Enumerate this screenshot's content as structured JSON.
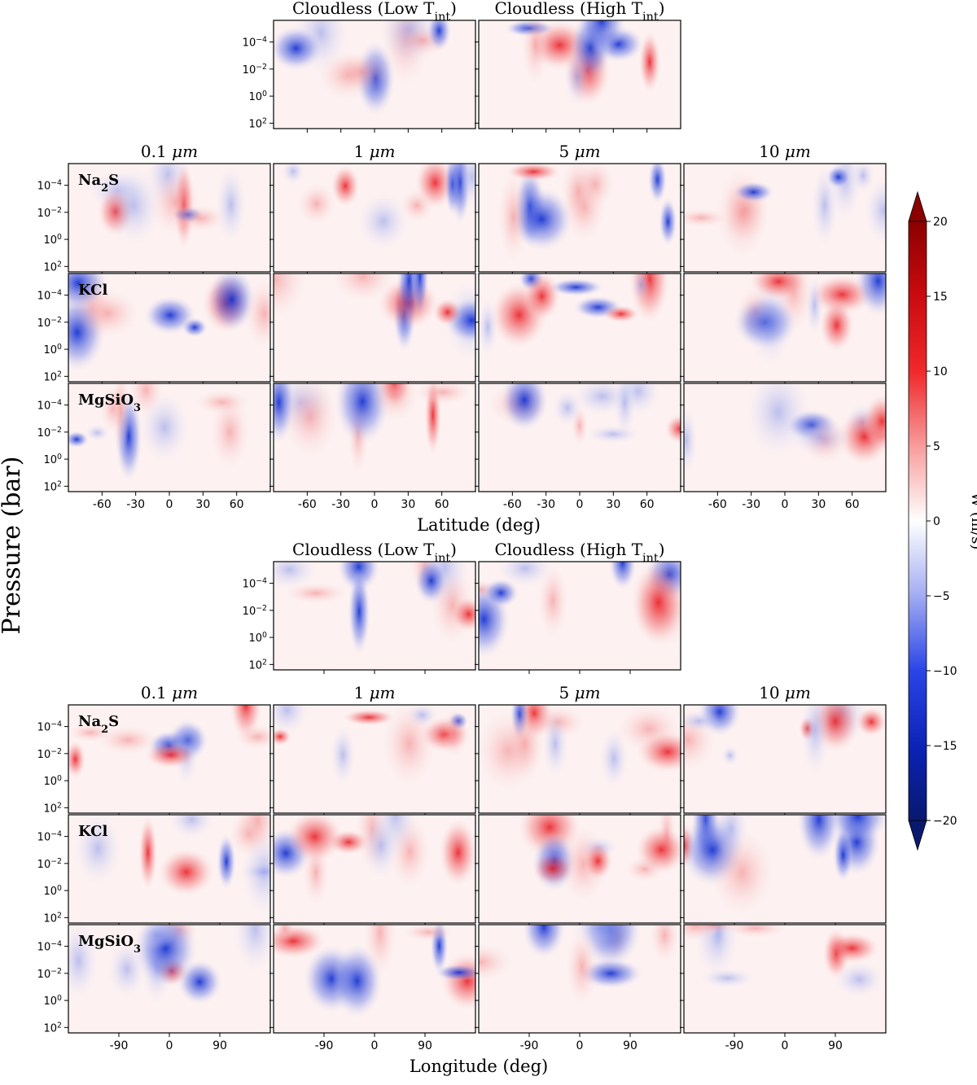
{
  "chart_data": {
    "type": "heatmap",
    "figure_ylabel": "Pressure (bar)",
    "colorbar": {
      "label": "W (m/s)",
      "range": [
        -20,
        20
      ],
      "ticks": [
        "20",
        "15",
        "10",
        "5",
        "0",
        "−5",
        "−10",
        "−15",
        "−20"
      ],
      "colors": {
        "negative": "#08196e",
        "neutral": "#ffffff",
        "positive": "#8b0000"
      }
    },
    "y_ticks": [
      {
        "base": "10",
        "exp": "−4"
      },
      {
        "base": "10",
        "exp": "−2"
      },
      {
        "base": "10",
        "exp": "0"
      },
      {
        "base": "10",
        "exp": "2"
      }
    ],
    "rows": [
      "Na2S",
      "KCl",
      "MgSiO3"
    ],
    "row_labels": [
      {
        "main": "Na",
        "sub": "2",
        "tail": "S"
      },
      {
        "main": "KCl",
        "sub": "",
        "tail": ""
      },
      {
        "main": "MgSiO",
        "sub": "3",
        "tail": ""
      }
    ],
    "columns": [
      "0.1 μm",
      "1 μm",
      "5 μm",
      "10 μm"
    ],
    "column_labels": [
      {
        "num": "0.1",
        "unit": "μm"
      },
      {
        "num": "1",
        "unit": "μm"
      },
      {
        "num": "5",
        "unit": "μm"
      },
      {
        "num": "10",
        "unit": "μm"
      }
    ],
    "cloudless": [
      {
        "prefix": "Cloudless (Low T",
        "sub": "int",
        "suffix": ")"
      },
      {
        "prefix": "Cloudless (High T",
        "sub": "int",
        "suffix": ")"
      }
    ],
    "panels": [
      {
        "name": "latitude",
        "xlabel": "Latitude (deg)",
        "xlim": [
          -90,
          90
        ],
        "ticks": [
          -60,
          -30,
          0,
          30,
          60
        ],
        "tick_labels": [
          "-60",
          "-30",
          "0",
          "30",
          "60"
        ]
      },
      {
        "name": "longitude",
        "xlabel": "Longitude (deg)",
        "xlim": [
          -180,
          180
        ],
        "ticks": [
          -90,
          0,
          90
        ],
        "tick_labels": [
          "-90",
          "0",
          "90"
        ]
      }
    ]
  }
}
